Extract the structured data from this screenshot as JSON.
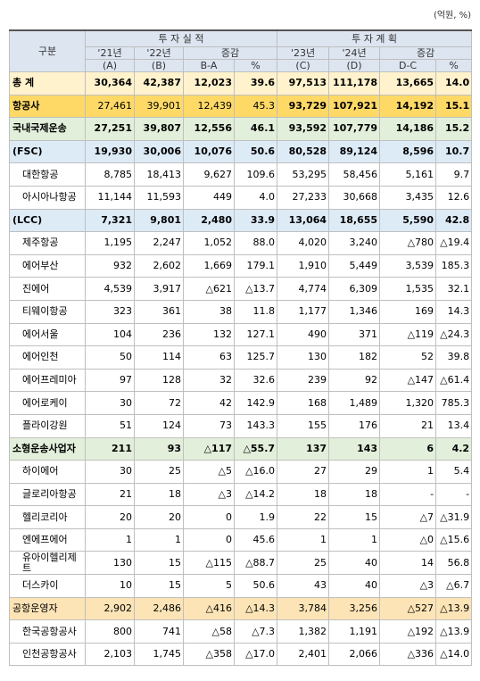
{
  "unit": "(억원, %)",
  "header": {
    "category": "구분",
    "actual": "투 자 실 적",
    "plan": "투 자 계 획",
    "columns": [
      {
        "year": "'21년",
        "sub": "(A)"
      },
      {
        "year": "'22년",
        "sub": "(B)"
      },
      {
        "year": "증감",
        "sub": "B-A"
      },
      {
        "sub": "%"
      },
      {
        "year": "'23년",
        "sub": "(C)"
      },
      {
        "year": "'24년",
        "sub": "(D)"
      },
      {
        "year": "증감",
        "sub": "D-C"
      },
      {
        "sub": "%"
      }
    ]
  },
  "table": {
    "rows": [
      {
        "label": "총 계",
        "values": [
          "30,364",
          "42,387",
          "12,023",
          "39.6",
          "97,513",
          "111,178",
          "13,665",
          "14.0"
        ]
      },
      {
        "label": "항공사",
        "values": [
          "27,461",
          "39,901",
          "12,439",
          "45.3",
          "93,729",
          "107,921",
          "14,192",
          "15.1"
        ]
      },
      {
        "label": "국내국제운송",
        "values": [
          "27,251",
          "39,807",
          "12,556",
          "46.1",
          "93,592",
          "107,779",
          "14,186",
          "15.2"
        ]
      },
      {
        "label": "(FSC)",
        "values": [
          "19,930",
          "30,006",
          "10,076",
          "50.6",
          "80,528",
          "89,124",
          "8,596",
          "10.7"
        ]
      },
      {
        "label": "대한항공",
        "values": [
          "8,785",
          "18,413",
          "9,627",
          "109.6",
          "53,295",
          "58,456",
          "5,161",
          "9.7"
        ]
      },
      {
        "label": "아시아나항공",
        "values": [
          "11,144",
          "11,593",
          "449",
          "4.0",
          "27,233",
          "30,668",
          "3,435",
          "12.6"
        ]
      },
      {
        "label": "(LCC)",
        "values": [
          "7,321",
          "9,801",
          "2,480",
          "33.9",
          "13,064",
          "18,655",
          "5,590",
          "42.8"
        ]
      },
      {
        "label": "제주항공",
        "values": [
          "1,195",
          "2,247",
          "1,052",
          "88.0",
          "4,020",
          "3,240",
          "△780",
          "△19.4"
        ]
      },
      {
        "label": "에어부산",
        "values": [
          "932",
          "2,602",
          "1,669",
          "179.1",
          "1,910",
          "5,449",
          "3,539",
          "185.3"
        ]
      },
      {
        "label": "진에어",
        "values": [
          "4,539",
          "3,917",
          "△621",
          "△13.7",
          "4,774",
          "6,309",
          "1,535",
          "32.1"
        ]
      },
      {
        "label": "티웨이항공",
        "values": [
          "323",
          "361",
          "38",
          "11.8",
          "1,177",
          "1,346",
          "169",
          "14.3"
        ]
      },
      {
        "label": "에어서울",
        "values": [
          "104",
          "236",
          "132",
          "127.1",
          "490",
          "371",
          "△119",
          "△24.3"
        ]
      },
      {
        "label": "에어인천",
        "values": [
          "50",
          "114",
          "63",
          "125.7",
          "130",
          "182",
          "52",
          "39.8"
        ]
      },
      {
        "label": "에어프레미아",
        "values": [
          "97",
          "128",
          "32",
          "32.6",
          "239",
          "92",
          "△147",
          "△61.4"
        ]
      },
      {
        "label": "에어로케이",
        "values": [
          "30",
          "72",
          "42",
          "142.9",
          "168",
          "1,489",
          "1,320",
          "785.3"
        ]
      },
      {
        "label": "플라이강원",
        "values": [
          "51",
          "124",
          "73",
          "143.3",
          "155",
          "176",
          "21",
          "13.4"
        ]
      },
      {
        "label": "소형운송사업자",
        "values": [
          "211",
          "93",
          "△117",
          "△55.7",
          "137",
          "143",
          "6",
          "4.2"
        ]
      },
      {
        "label": "하이에어",
        "values": [
          "30",
          "25",
          "△5",
          "△16.0",
          "27",
          "29",
          "1",
          "5.4"
        ]
      },
      {
        "label": "글로리아항공",
        "values": [
          "21",
          "18",
          "△3",
          "△14.2",
          "18",
          "18",
          "-",
          "-"
        ]
      },
      {
        "label": "헬리코리아",
        "values": [
          "20",
          "20",
          "0",
          "1.9",
          "22",
          "15",
          "△7",
          "△31.9"
        ]
      },
      {
        "label": "엔에프에어",
        "values": [
          "1",
          "1",
          "0",
          "45.6",
          "1",
          "1",
          "△0",
          "△15.6"
        ]
      },
      {
        "label": "유아이헬리제트",
        "values": [
          "130",
          "15",
          "△115",
          "△88.7",
          "25",
          "40",
          "14",
          "56.8"
        ]
      },
      {
        "label": "더스카이",
        "values": [
          "10",
          "15",
          "5",
          "50.6",
          "43",
          "40",
          "△3",
          "△6.7"
        ]
      },
      {
        "label": "공항운영자",
        "values": [
          "2,902",
          "2,486",
          "△416",
          "△14.3",
          "3,784",
          "3,256",
          "△527",
          "△13.9"
        ]
      },
      {
        "label": "한국공항공사",
        "values": [
          "800",
          "741",
          "△58",
          "△7.3",
          "1,382",
          "1,191",
          "△192",
          "△13.9"
        ]
      },
      {
        "label": "인천공항공사",
        "values": [
          "2,103",
          "1,745",
          "△358",
          "△17.0",
          "2,401",
          "2,066",
          "△336",
          "△14.0"
        ]
      }
    ]
  }
}
